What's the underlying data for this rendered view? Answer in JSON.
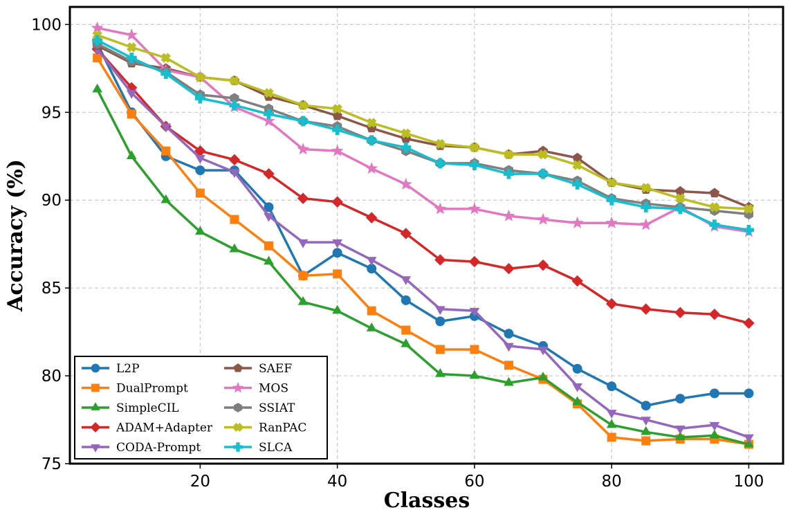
{
  "chart_data": {
    "type": "line",
    "title": "",
    "xlabel": "Classes",
    "ylabel": "Accuracy (%)",
    "xlim": [
      1,
      105
    ],
    "ylim": [
      75,
      101
    ],
    "xticks": [
      20,
      40,
      60,
      80,
      100
    ],
    "yticks": [
      75,
      80,
      85,
      90,
      95,
      100
    ],
    "grid": true,
    "legend_position": "lower-left",
    "x": [
      5,
      10,
      15,
      20,
      25,
      30,
      35,
      40,
      45,
      50,
      55,
      60,
      65,
      70,
      75,
      80,
      85,
      90,
      95,
      100
    ],
    "series": [
      {
        "name": "L2P",
        "color": "#1f77b4",
        "marker": "circle",
        "values": [
          98.9,
          95.0,
          92.5,
          91.7,
          91.7,
          89.6,
          85.7,
          87.0,
          86.1,
          84.3,
          83.1,
          83.4,
          82.4,
          81.7,
          80.4,
          79.4,
          78.3,
          78.7,
          79.0,
          79.0
        ]
      },
      {
        "name": "DualPrompt",
        "color": "#ff7f0e",
        "marker": "square",
        "values": [
          98.1,
          94.9,
          92.8,
          90.4,
          88.9,
          87.4,
          85.7,
          85.8,
          83.7,
          82.6,
          81.5,
          81.5,
          80.6,
          79.8,
          78.4,
          76.5,
          76.3,
          76.4,
          76.4,
          76.1
        ]
      },
      {
        "name": "SimpleCIL",
        "color": "#2ca02c",
        "marker": "triangle-up",
        "values": [
          96.3,
          92.5,
          90.0,
          88.2,
          87.2,
          86.5,
          84.2,
          83.7,
          82.7,
          81.8,
          80.1,
          80.0,
          79.6,
          79.9,
          78.5,
          77.2,
          76.8,
          76.5,
          76.6,
          76.1
        ]
      },
      {
        "name": "ADAM+Adapter",
        "color": "#d62728",
        "marker": "diamond",
        "values": [
          98.6,
          96.4,
          94.2,
          92.8,
          92.3,
          91.5,
          90.1,
          89.9,
          89.0,
          88.1,
          86.6,
          86.5,
          86.1,
          86.3,
          85.4,
          84.1,
          83.8,
          83.6,
          83.5,
          83.0
        ]
      },
      {
        "name": "CODA-Prompt",
        "color": "#9467bd",
        "marker": "triangle-down",
        "values": [
          98.6,
          96.1,
          94.2,
          92.4,
          91.6,
          89.1,
          87.6,
          87.6,
          86.6,
          85.5,
          83.8,
          83.7,
          81.7,
          81.5,
          79.4,
          77.9,
          77.5,
          77.0,
          77.2,
          76.5
        ]
      },
      {
        "name": "SAEF",
        "color": "#8c564b",
        "marker": "pentagon",
        "values": [
          98.8,
          97.8,
          97.5,
          97.0,
          96.8,
          95.9,
          95.4,
          94.8,
          94.1,
          93.5,
          93.1,
          93.0,
          92.6,
          92.8,
          92.4,
          91.0,
          90.6,
          90.5,
          90.4,
          89.6
        ]
      },
      {
        "name": "MOS",
        "color": "#e377c2",
        "marker": "star",
        "values": [
          99.8,
          99.4,
          97.4,
          97.0,
          95.3,
          94.5,
          92.9,
          92.8,
          91.8,
          90.9,
          89.5,
          89.5,
          89.1,
          88.9,
          88.7,
          88.7,
          88.6,
          89.6,
          88.5,
          88.2
        ]
      },
      {
        "name": "SSIAT",
        "color": "#7f7f7f",
        "marker": "hexagon",
        "values": [
          98.9,
          97.9,
          97.3,
          96.0,
          95.8,
          95.2,
          94.5,
          94.2,
          93.4,
          92.8,
          92.1,
          92.1,
          91.7,
          91.5,
          91.1,
          90.1,
          89.8,
          89.6,
          89.4,
          89.2
        ]
      },
      {
        "name": "RanPAC",
        "color": "#bcbd22",
        "marker": "x",
        "values": [
          99.4,
          98.7,
          98.1,
          97.0,
          96.8,
          96.1,
          95.4,
          95.2,
          94.4,
          93.8,
          93.2,
          93.0,
          92.6,
          92.6,
          92.0,
          91.0,
          90.7,
          90.1,
          89.6,
          89.5
        ]
      },
      {
        "name": "SLCA",
        "color": "#17becf",
        "marker": "plus",
        "values": [
          99.1,
          98.1,
          97.2,
          95.8,
          95.4,
          94.9,
          94.5,
          94.0,
          93.4,
          93.0,
          92.1,
          92.0,
          91.5,
          91.5,
          90.9,
          90.0,
          89.6,
          89.5,
          88.6,
          88.3
        ]
      }
    ]
  }
}
